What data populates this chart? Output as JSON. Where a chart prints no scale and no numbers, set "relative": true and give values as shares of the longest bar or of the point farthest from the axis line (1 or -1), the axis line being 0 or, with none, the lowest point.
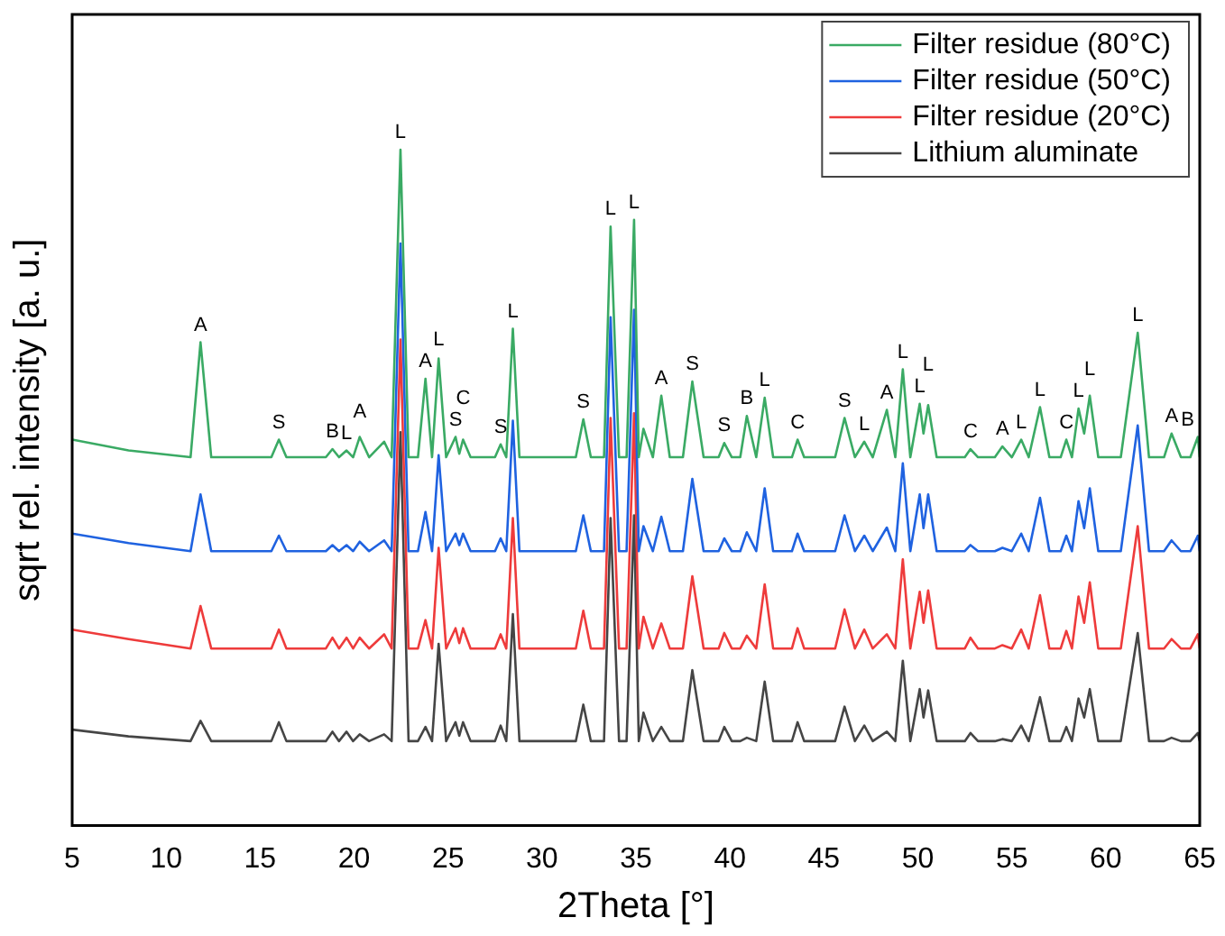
{
  "chart_data": {
    "type": "line",
    "xlabel": "2Theta [°]",
    "ylabel": "sqrt rel. intensity [a. u.]",
    "relative": true,
    "marker": "none",
    "legend": "top right",
    "xlim": [
      5,
      65
    ],
    "xticks": [
      5,
      10,
      15,
      20,
      25,
      30,
      35,
      40,
      45,
      50,
      55,
      60,
      65
    ],
    "x": [
      5,
      8,
      11.3,
      11.83,
      12.4,
      15.6,
      16.0,
      16.4,
      18.5,
      18.85,
      19.2,
      19.6,
      19.95,
      20.3,
      20.8,
      21.6,
      22.0,
      22.47,
      22.9,
      23.4,
      23.8,
      24.15,
      24.5,
      24.9,
      25.4,
      25.6,
      25.8,
      26.2,
      27.5,
      27.8,
      28.1,
      28.45,
      28.8,
      31.8,
      32.2,
      32.6,
      33.3,
      33.65,
      34.1,
      34.5,
      34.9,
      35.15,
      35.4,
      35.9,
      36.35,
      36.8,
      37.5,
      38.0,
      38.6,
      39.4,
      39.7,
      40.1,
      40.55,
      40.9,
      41.4,
      41.85,
      42.3,
      43.3,
      43.6,
      43.95,
      45.6,
      46.1,
      46.65,
      47.15,
      47.6,
      48.35,
      48.8,
      49.2,
      49.6,
      50.1,
      50.3,
      50.55,
      51.0,
      52.5,
      52.8,
      53.2,
      54.1,
      54.5,
      55.0,
      55.5,
      55.9,
      56.5,
      57.0,
      57.6,
      57.9,
      58.2,
      58.55,
      58.85,
      59.15,
      59.6,
      60.8,
      61.7,
      62.3,
      63.1,
      63.5,
      64.0,
      64.5,
      64.9,
      65
    ],
    "series": [
      {
        "name": "Filter residue (80°C)",
        "color": "#3aaa64",
        "values": [
          0.571,
          0.555,
          0.545,
          0.715,
          0.545,
          0.545,
          0.571,
          0.545,
          0.545,
          0.557,
          0.545,
          0.555,
          0.545,
          0.575,
          0.545,
          0.568,
          0.545,
          1.0,
          0.545,
          0.545,
          0.661,
          0.545,
          0.691,
          0.545,
          0.575,
          0.55,
          0.571,
          0.545,
          0.545,
          0.564,
          0.545,
          0.735,
          0.545,
          0.545,
          0.601,
          0.545,
          0.545,
          0.886,
          0.545,
          0.545,
          0.896,
          0.545,
          0.587,
          0.545,
          0.636,
          0.545,
          0.545,
          0.657,
          0.545,
          0.545,
          0.566,
          0.545,
          0.545,
          0.606,
          0.545,
          0.633,
          0.545,
          0.545,
          0.571,
          0.545,
          0.545,
          0.603,
          0.545,
          0.568,
          0.545,
          0.615,
          0.545,
          0.675,
          0.545,
          0.624,
          0.58,
          0.622,
          0.545,
          0.545,
          0.557,
          0.545,
          0.545,
          0.561,
          0.545,
          0.571,
          0.545,
          0.619,
          0.545,
          0.545,
          0.571,
          0.545,
          0.617,
          0.58,
          0.636,
          0.545,
          0.545,
          0.729,
          0.545,
          0.545,
          0.58,
          0.545,
          0.545,
          0.575,
          0.545
        ]
      },
      {
        "name": "Filter residue (50°C)",
        "color": "#1f62e0",
        "values": [
          0.432,
          0.418,
          0.406,
          0.49,
          0.406,
          0.406,
          0.429,
          0.406,
          0.406,
          0.415,
          0.406,
          0.415,
          0.406,
          0.42,
          0.406,
          0.422,
          0.406,
          0.861,
          0.406,
          0.406,
          0.464,
          0.406,
          0.548,
          0.406,
          0.432,
          0.415,
          0.432,
          0.406,
          0.406,
          0.425,
          0.406,
          0.599,
          0.406,
          0.406,
          0.459,
          0.406,
          0.406,
          0.752,
          0.406,
          0.406,
          0.763,
          0.406,
          0.443,
          0.406,
          0.457,
          0.406,
          0.406,
          0.513,
          0.406,
          0.406,
          0.425,
          0.406,
          0.406,
          0.434,
          0.406,
          0.499,
          0.406,
          0.406,
          0.432,
          0.406,
          0.406,
          0.459,
          0.406,
          0.429,
          0.406,
          0.441,
          0.406,
          0.536,
          0.406,
          0.49,
          0.44,
          0.49,
          0.406,
          0.406,
          0.415,
          0.406,
          0.406,
          0.411,
          0.406,
          0.432,
          0.406,
          0.485,
          0.406,
          0.406,
          0.429,
          0.406,
          0.48,
          0.44,
          0.499,
          0.406,
          0.406,
          0.592,
          0.406,
          0.406,
          0.422,
          0.406,
          0.406,
          0.429,
          0.406
        ]
      },
      {
        "name": "Filter residue (20°C)",
        "color": "#ee3b3b",
        "values": [
          0.29,
          0.276,
          0.262,
          0.325,
          0.262,
          0.262,
          0.29,
          0.262,
          0.262,
          0.278,
          0.262,
          0.278,
          0.262,
          0.278,
          0.262,
          0.283,
          0.262,
          0.719,
          0.262,
          0.262,
          0.304,
          0.262,
          0.411,
          0.262,
          0.292,
          0.27,
          0.292,
          0.262,
          0.262,
          0.283,
          0.262,
          0.455,
          0.262,
          0.262,
          0.318,
          0.262,
          0.262,
          0.603,
          0.262,
          0.262,
          0.61,
          0.262,
          0.309,
          0.262,
          0.299,
          0.262,
          0.262,
          0.369,
          0.262,
          0.262,
          0.285,
          0.262,
          0.262,
          0.281,
          0.262,
          0.357,
          0.262,
          0.262,
          0.292,
          0.262,
          0.262,
          0.32,
          0.262,
          0.29,
          0.262,
          0.283,
          0.262,
          0.394,
          0.262,
          0.346,
          0.3,
          0.348,
          0.262,
          0.262,
          0.278,
          0.262,
          0.262,
          0.267,
          0.262,
          0.29,
          0.262,
          0.341,
          0.262,
          0.262,
          0.288,
          0.262,
          0.339,
          0.3,
          0.36,
          0.262,
          0.262,
          0.443,
          0.262,
          0.262,
          0.276,
          0.262,
          0.262,
          0.283,
          0.262
        ]
      },
      {
        "name": "Lithium aluminate",
        "color": "#454545",
        "values": [
          0.142,
          0.132,
          0.125,
          0.155,
          0.125,
          0.125,
          0.153,
          0.125,
          0.125,
          0.139,
          0.125,
          0.139,
          0.125,
          0.135,
          0.125,
          0.135,
          0.125,
          0.582,
          0.125,
          0.125,
          0.146,
          0.125,
          0.269,
          0.125,
          0.153,
          0.133,
          0.153,
          0.125,
          0.125,
          0.148,
          0.125,
          0.313,
          0.125,
          0.125,
          0.179,
          0.125,
          0.125,
          0.455,
          0.125,
          0.125,
          0.459,
          0.125,
          0.167,
          0.125,
          0.146,
          0.125,
          0.125,
          0.23,
          0.125,
          0.125,
          0.146,
          0.125,
          0.125,
          0.13,
          0.125,
          0.213,
          0.125,
          0.125,
          0.153,
          0.125,
          0.125,
          0.176,
          0.125,
          0.148,
          0.125,
          0.139,
          0.125,
          0.244,
          0.125,
          0.202,
          0.16,
          0.2,
          0.125,
          0.125,
          0.137,
          0.125,
          0.125,
          0.128,
          0.125,
          0.148,
          0.125,
          0.19,
          0.125,
          0.125,
          0.146,
          0.125,
          0.188,
          0.16,
          0.202,
          0.125,
          0.125,
          0.285,
          0.125,
          0.125,
          0.13,
          0.125,
          0.125,
          0.137,
          0.125
        ]
      }
    ],
    "annotations": [
      {
        "text": "A",
        "x": 11.83,
        "y": 0.715
      },
      {
        "text": "S",
        "x": 16.0,
        "y": 0.571
      },
      {
        "text": "B",
        "x": 18.85,
        "y": 0.557
      },
      {
        "text": "L",
        "x": 19.6,
        "y": 0.555
      },
      {
        "text": "A",
        "x": 20.3,
        "y": 0.575
      },
      {
        "text": "L",
        "x": 22.47,
        "y": 1.0
      },
      {
        "text": "A",
        "x": 23.8,
        "y": 0.661
      },
      {
        "text": "L",
        "x": 24.5,
        "y": 0.691
      },
      {
        "text": "S",
        "x": 25.4,
        "y": 0.575
      },
      {
        "text": "C",
        "x": 25.8,
        "y": 0.571
      },
      {
        "text": "S",
        "x": 27.8,
        "y": 0.564
      },
      {
        "text": "L",
        "x": 28.45,
        "y": 0.735
      },
      {
        "text": "S",
        "x": 32.2,
        "y": 0.601
      },
      {
        "text": "L",
        "x": 33.65,
        "y": 0.886
      },
      {
        "text": "L",
        "x": 34.9,
        "y": 0.896
      },
      {
        "text": "A",
        "x": 36.35,
        "y": 0.636
      },
      {
        "text": "S",
        "x": 38.0,
        "y": 0.657
      },
      {
        "text": "S",
        "x": 39.7,
        "y": 0.566
      },
      {
        "text": "B",
        "x": 40.9,
        "y": 0.606
      },
      {
        "text": "L",
        "x": 41.85,
        "y": 0.633
      },
      {
        "text": "C",
        "x": 43.6,
        "y": 0.571
      },
      {
        "text": "S",
        "x": 46.1,
        "y": 0.603
      },
      {
        "text": "L",
        "x": 47.15,
        "y": 0.568
      },
      {
        "text": "A",
        "x": 48.35,
        "y": 0.615
      },
      {
        "text": "L",
        "x": 49.2,
        "y": 0.675
      },
      {
        "text": "L",
        "x": 50.1,
        "y": 0.624
      },
      {
        "text": "L",
        "x": 50.55,
        "y": 0.622
      },
      {
        "text": "C",
        "x": 52.8,
        "y": 0.557
      },
      {
        "text": "A",
        "x": 54.5,
        "y": 0.561
      },
      {
        "text": "L",
        "x": 55.5,
        "y": 0.571
      },
      {
        "text": "L",
        "x": 56.5,
        "y": 0.619
      },
      {
        "text": "C",
        "x": 57.9,
        "y": 0.571
      },
      {
        "text": "L",
        "x": 58.55,
        "y": 0.617
      },
      {
        "text": "L",
        "x": 59.15,
        "y": 0.636
      },
      {
        "text": "L",
        "x": 61.7,
        "y": 0.729
      },
      {
        "text": "A",
        "x": 63.5,
        "y": 0.58
      },
      {
        "text": "B",
        "x": 64.9,
        "y": 0.575
      }
    ]
  }
}
